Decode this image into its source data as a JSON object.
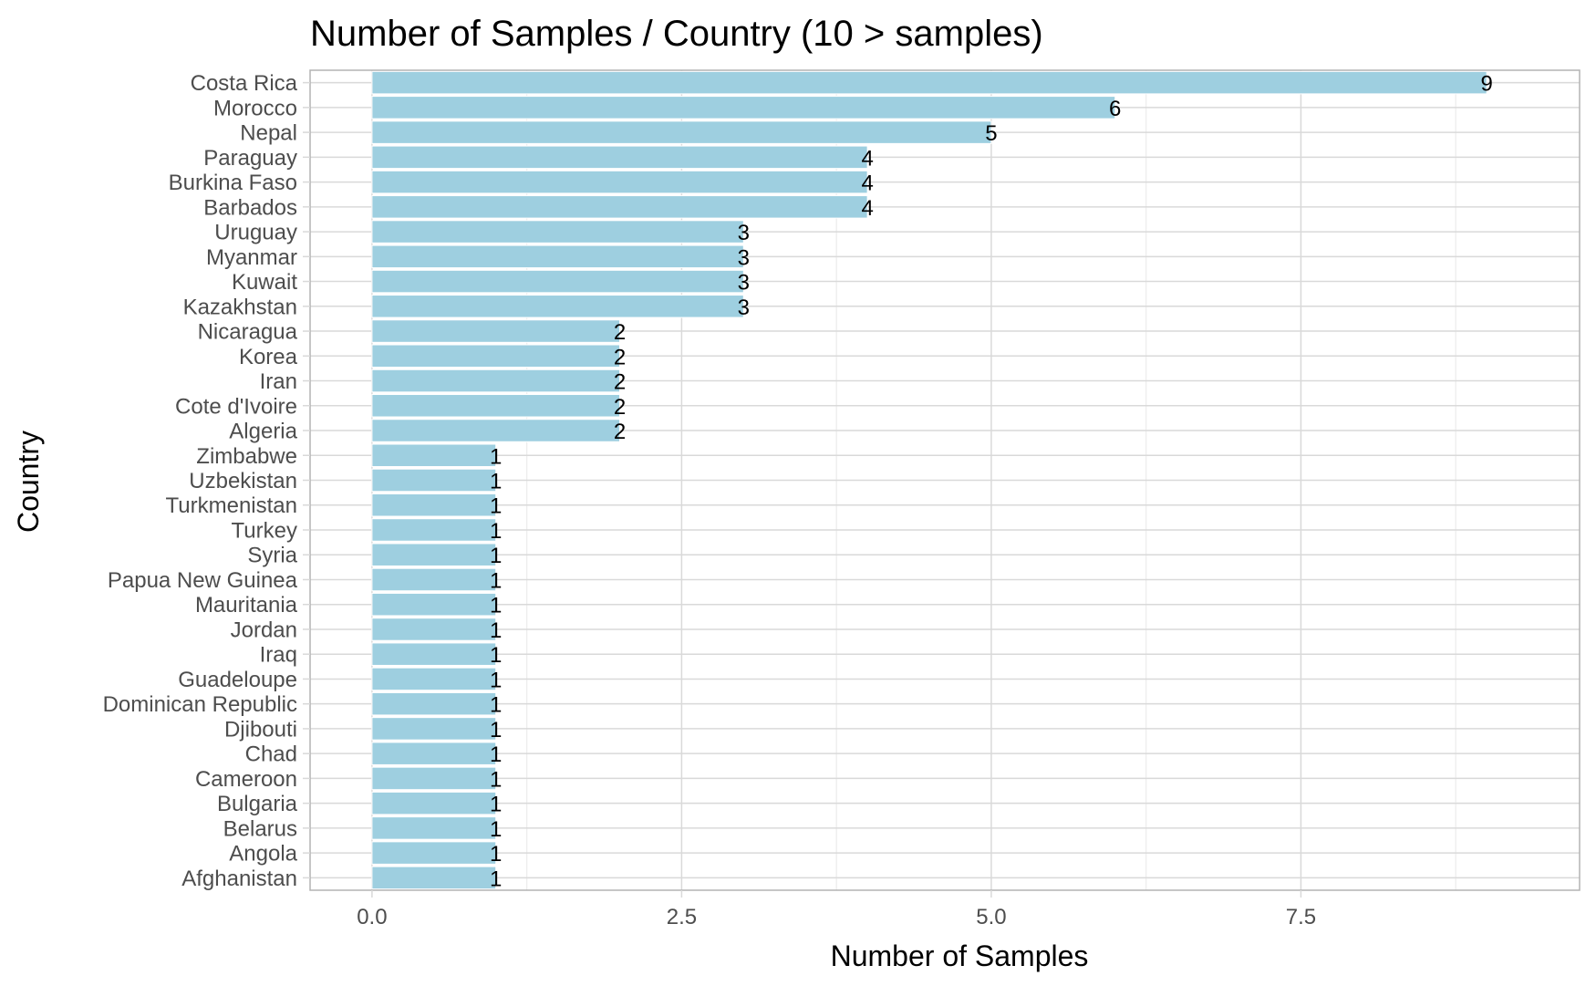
{
  "chart_data": {
    "type": "bar",
    "orientation": "horizontal",
    "title": "Number of Samples / Country (10 > samples)",
    "xlabel": "Number of Samples",
    "ylabel": "Country",
    "xlim": [
      -0.5,
      9.75
    ],
    "x_ticks": [
      0,
      2.5,
      5,
      7.5
    ],
    "x_tick_labels": [
      "0.0",
      "2.5",
      "5.0",
      "7.5"
    ],
    "categories": [
      "Costa Rica",
      "Morocco",
      "Nepal",
      "Paraguay",
      "Burkina Faso",
      "Barbados",
      "Uruguay",
      "Myanmar",
      "Kuwait",
      "Kazakhstan",
      "Nicaragua",
      "Korea",
      "Iran",
      "Cote d'Ivoire",
      "Algeria",
      "Zimbabwe",
      "Uzbekistan",
      "Turkmenistan",
      "Turkey",
      "Syria",
      "Papua New Guinea",
      "Mauritania",
      "Jordan",
      "Iraq",
      "Guadeloupe",
      "Dominican Republic",
      "Djibouti",
      "Chad",
      "Cameroon",
      "Bulgaria",
      "Belarus",
      "Angola",
      "Afghanistan"
    ],
    "values": [
      9,
      6,
      5,
      4,
      4,
      4,
      3,
      3,
      3,
      3,
      2,
      2,
      2,
      2,
      2,
      1,
      1,
      1,
      1,
      1,
      1,
      1,
      1,
      1,
      1,
      1,
      1,
      1,
      1,
      1,
      1,
      1,
      1
    ],
    "data_labels": [
      "9",
      "6",
      "5",
      "4",
      "4",
      "4",
      "3",
      "3",
      "3",
      "3",
      "2",
      "2",
      "2",
      "2",
      "2",
      "1",
      "1",
      "1",
      "1",
      "1",
      "1",
      "1",
      "1",
      "1",
      "1",
      "1",
      "1",
      "1",
      "1",
      "1",
      "1",
      "1",
      "1"
    ],
    "grid": true,
    "legend": "none",
    "colors": {
      "bar": "#9ecfe0",
      "bar_outline": "#ffffff",
      "grid_major": "#d9d9d9",
      "grid_minor": "#ececec",
      "panel_border": "#b3b3b3",
      "tick_text": "#4d4d4d",
      "text": "#000000"
    }
  }
}
